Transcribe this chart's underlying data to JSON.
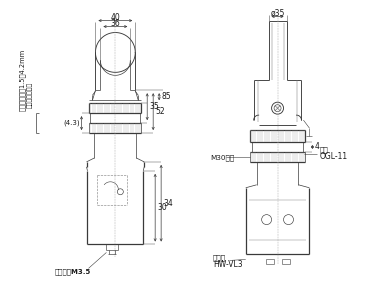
{
  "bg_color": "#ffffff",
  "line_color": "#3a3a3a",
  "text_color": "#1a1a1a",
  "fig_width": 3.78,
  "fig_height": 2.84,
  "dpi": 100,
  "labels": {
    "width40": "40",
    "width36": "36",
    "dim85": "85",
    "dim52": "52",
    "dim35": "35",
    "dim30": "30",
    "dim34": "34",
    "dim43": "(4.3)",
    "phi35": "ø35",
    "dim4": "4",
    "M30": "M30螺絲",
    "OGL11": "OGL-11",
    "stop": "止擋",
    "terminal_cap": "端子蓋",
    "HW_VL3": "HW-VL3",
    "terminal_screw": "端子螺絲M3.5",
    "side_label": "安裝面板厘度1.5～4.2mm",
    "side_label2": "（使用止擋時）"
  }
}
